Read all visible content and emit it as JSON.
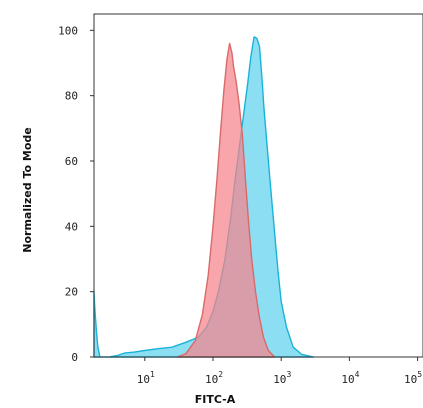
{
  "chart_data": {
    "type": "area",
    "xlabel": "FITC-A",
    "ylabel": "Normalized To Mode",
    "x_scale": "log",
    "xlim": [
      1.8,
      120000
    ],
    "ylim": [
      0,
      105
    ],
    "x_ticks": [
      {
        "base": "10",
        "exp": "1",
        "value": 10
      },
      {
        "base": "10",
        "exp": "2",
        "value": 100
      },
      {
        "base": "10",
        "exp": "3",
        "value": 1000
      },
      {
        "base": "10",
        "exp": "4",
        "value": 10000
      },
      {
        "base": "10",
        "exp": "5",
        "value": 100000
      }
    ],
    "y_ticks": [
      {
        "label": "0",
        "value": 0
      },
      {
        "label": "20",
        "value": 20
      },
      {
        "label": "40",
        "value": 40
      },
      {
        "label": "60",
        "value": 60
      },
      {
        "label": "80",
        "value": 80
      },
      {
        "label": "100",
        "value": 100
      }
    ],
    "grid": false,
    "series": [
      {
        "color": "#5fd3ee",
        "stroke": "#19b3d8",
        "opacity": 0.72,
        "points": [
          [
            1.8,
            20
          ],
          [
            1.85,
            15
          ],
          [
            1.95,
            8
          ],
          [
            2.05,
            3
          ],
          [
            2.2,
            0
          ],
          [
            3,
            0
          ],
          [
            4,
            0.5
          ],
          [
            5,
            1.2
          ],
          [
            7,
            1.5
          ],
          [
            10,
            2
          ],
          [
            15,
            2.5
          ],
          [
            25,
            3
          ],
          [
            40,
            4.5
          ],
          [
            60,
            6
          ],
          [
            80,
            9
          ],
          [
            100,
            14
          ],
          [
            120,
            20
          ],
          [
            150,
            30
          ],
          [
            180,
            42
          ],
          [
            210,
            54
          ],
          [
            250,
            66
          ],
          [
            280,
            74
          ],
          [
            320,
            83
          ],
          [
            360,
            92
          ],
          [
            400,
            98
          ],
          [
            440,
            97.5
          ],
          [
            480,
            95
          ],
          [
            520,
            86
          ],
          [
            560,
            76
          ],
          [
            620,
            65
          ],
          [
            700,
            52
          ],
          [
            800,
            38
          ],
          [
            900,
            26
          ],
          [
            1000,
            17
          ],
          [
            1200,
            9
          ],
          [
            1500,
            3
          ],
          [
            2000,
            0.8
          ],
          [
            3000,
            0
          ]
        ]
      },
      {
        "color": "#f5848a",
        "stroke": "#d96a6a",
        "opacity": 0.72,
        "points": [
          [
            30,
            0
          ],
          [
            40,
            1
          ],
          [
            55,
            5
          ],
          [
            70,
            13
          ],
          [
            85,
            25
          ],
          [
            100,
            40
          ],
          [
            115,
            55
          ],
          [
            130,
            70
          ],
          [
            145,
            82
          ],
          [
            160,
            91
          ],
          [
            175,
            96
          ],
          [
            190,
            93
          ],
          [
            200,
            89
          ],
          [
            220,
            84
          ],
          [
            240,
            78
          ],
          [
            270,
            68
          ],
          [
            300,
            54
          ],
          [
            330,
            42
          ],
          [
            370,
            30
          ],
          [
            420,
            20
          ],
          [
            480,
            12
          ],
          [
            550,
            6
          ],
          [
            650,
            2
          ],
          [
            800,
            0
          ]
        ]
      }
    ]
  }
}
